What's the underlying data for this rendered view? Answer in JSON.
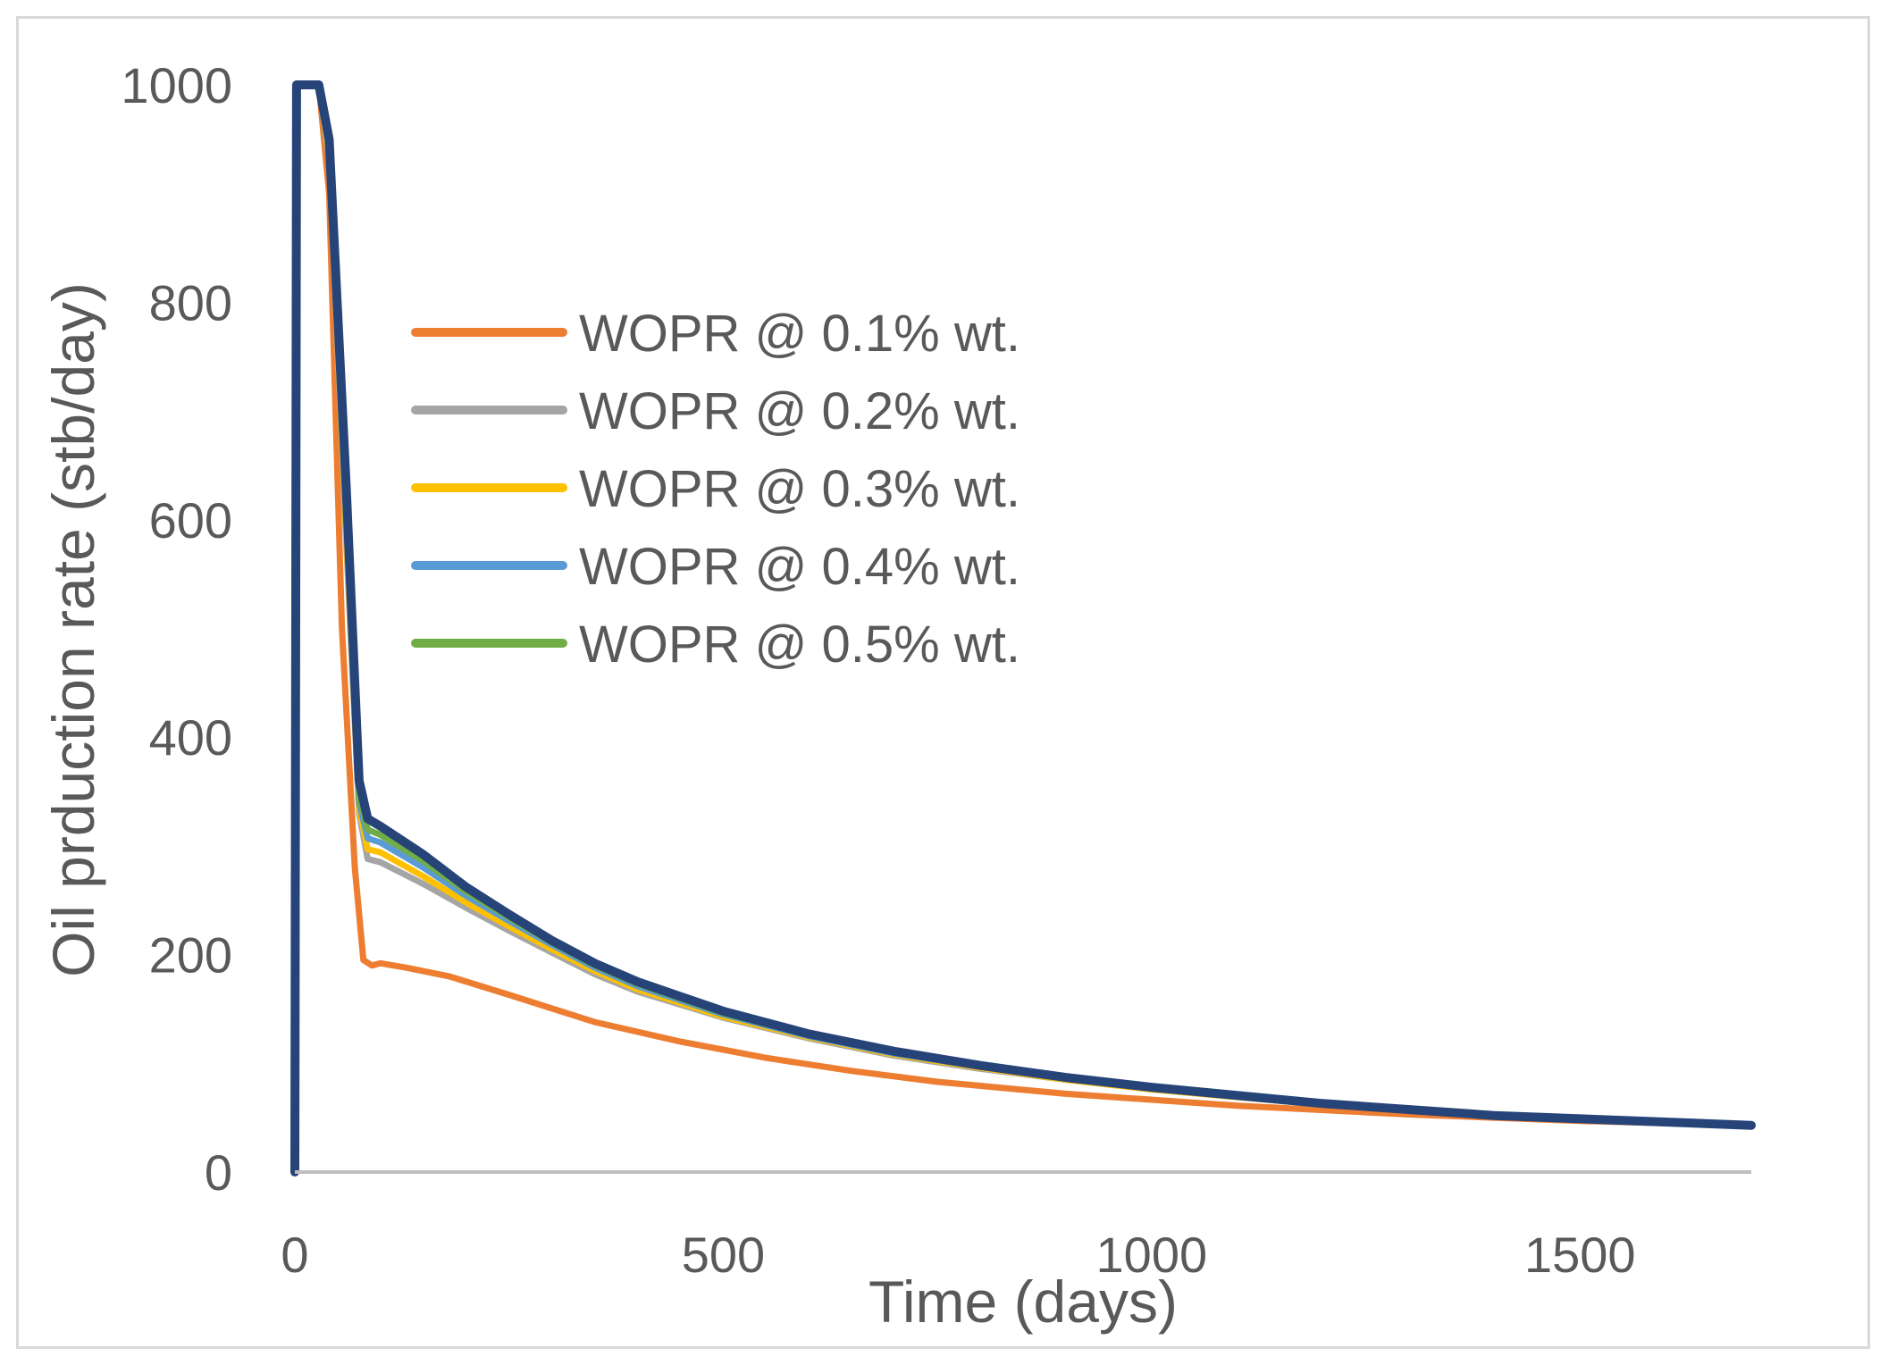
{
  "chart_data": {
    "type": "line",
    "title": "",
    "xlabel": "Time (days)",
    "ylabel": "Oil prduction rate (stb/day)",
    "xlim": [
      0,
      1700
    ],
    "ylim": [
      0,
      1000
    ],
    "xticks": [
      "0",
      "500",
      "1000",
      "1500"
    ],
    "yticks": [
      "0",
      "200",
      "400",
      "600",
      "800",
      "1000"
    ],
    "grid": false,
    "legend_position": "upper-center",
    "series": [
      {
        "name": "WOPR @ 0.1% wt.",
        "color": "#ED7D31",
        "x": [
          0,
          2,
          5,
          28,
          40,
          55,
          70,
          80,
          90,
          100,
          130,
          180,
          250,
          350,
          450,
          550,
          650,
          750,
          900,
          1100,
          1300,
          1500,
          1700
        ],
        "y": [
          0,
          1000,
          1000,
          1000,
          900,
          500,
          280,
          195,
          190,
          192,
          188,
          180,
          163,
          138,
          120,
          105,
          93,
          83,
          72,
          61,
          53,
          47,
          43
        ]
      },
      {
        "name": "WOPR @ 0.2% wt.",
        "color": "#A5A5A5",
        "x": [
          0,
          2,
          5,
          28,
          40,
          60,
          75,
          85,
          100,
          150,
          200,
          250,
          300,
          350,
          400,
          500,
          600,
          700,
          800,
          900,
          1000,
          1200,
          1400,
          1700
        ],
        "y": [
          0,
          1000,
          1000,
          1000,
          930,
          580,
          330,
          288,
          285,
          265,
          243,
          222,
          202,
          182,
          166,
          142,
          123,
          107,
          95,
          85,
          76,
          62,
          52,
          43
        ]
      },
      {
        "name": "WOPR @ 0.3% wt.",
        "color": "#FFC000",
        "x": [
          0,
          2,
          5,
          28,
          40,
          60,
          75,
          85,
          100,
          150,
          200,
          250,
          300,
          350,
          400,
          500,
          600,
          700,
          800,
          900,
          1000,
          1200,
          1400,
          1700
        ],
        "y": [
          0,
          1000,
          1000,
          1000,
          935,
          590,
          335,
          297,
          294,
          272,
          248,
          226,
          205,
          185,
          168,
          143,
          124,
          108,
          96,
          85,
          76,
          62,
          52,
          43
        ]
      },
      {
        "name": "WOPR @ 0.4% wt.",
        "color": "#5B9BD5",
        "x": [
          0,
          2,
          5,
          28,
          40,
          60,
          75,
          85,
          100,
          150,
          200,
          250,
          300,
          350,
          400,
          500,
          600,
          700,
          800,
          900,
          1000,
          1200,
          1400,
          1700
        ],
        "y": [
          0,
          1000,
          1000,
          1000,
          940,
          600,
          340,
          307,
          303,
          280,
          254,
          231,
          209,
          188,
          171,
          145,
          125,
          109,
          97,
          86,
          77,
          63,
          52,
          43
        ]
      },
      {
        "name": "WOPR @ 0.5% wt.",
        "color": "#70AD47",
        "x": [
          0,
          2,
          5,
          28,
          40,
          60,
          75,
          85,
          100,
          150,
          200,
          250,
          300,
          350,
          400,
          500,
          600,
          700,
          800,
          900,
          1000,
          1200,
          1400,
          1700
        ],
        "y": [
          0,
          1000,
          1000,
          1000,
          945,
          610,
          345,
          315,
          310,
          286,
          258,
          234,
          211,
          190,
          173,
          146,
          126,
          110,
          97,
          86,
          77,
          63,
          52,
          43
        ]
      },
      {
        "name": "",
        "color": "#264478",
        "x": [
          0,
          2,
          5,
          28,
          40,
          60,
          75,
          85,
          100,
          150,
          200,
          250,
          300,
          350,
          400,
          500,
          600,
          700,
          800,
          900,
          1000,
          1200,
          1400,
          1700
        ],
        "y": [
          0,
          1000,
          1000,
          1000,
          950,
          630,
          360,
          325,
          318,
          292,
          262,
          237,
          213,
          192,
          175,
          148,
          127,
          111,
          98,
          87,
          78,
          63,
          52,
          43
        ]
      }
    ]
  }
}
